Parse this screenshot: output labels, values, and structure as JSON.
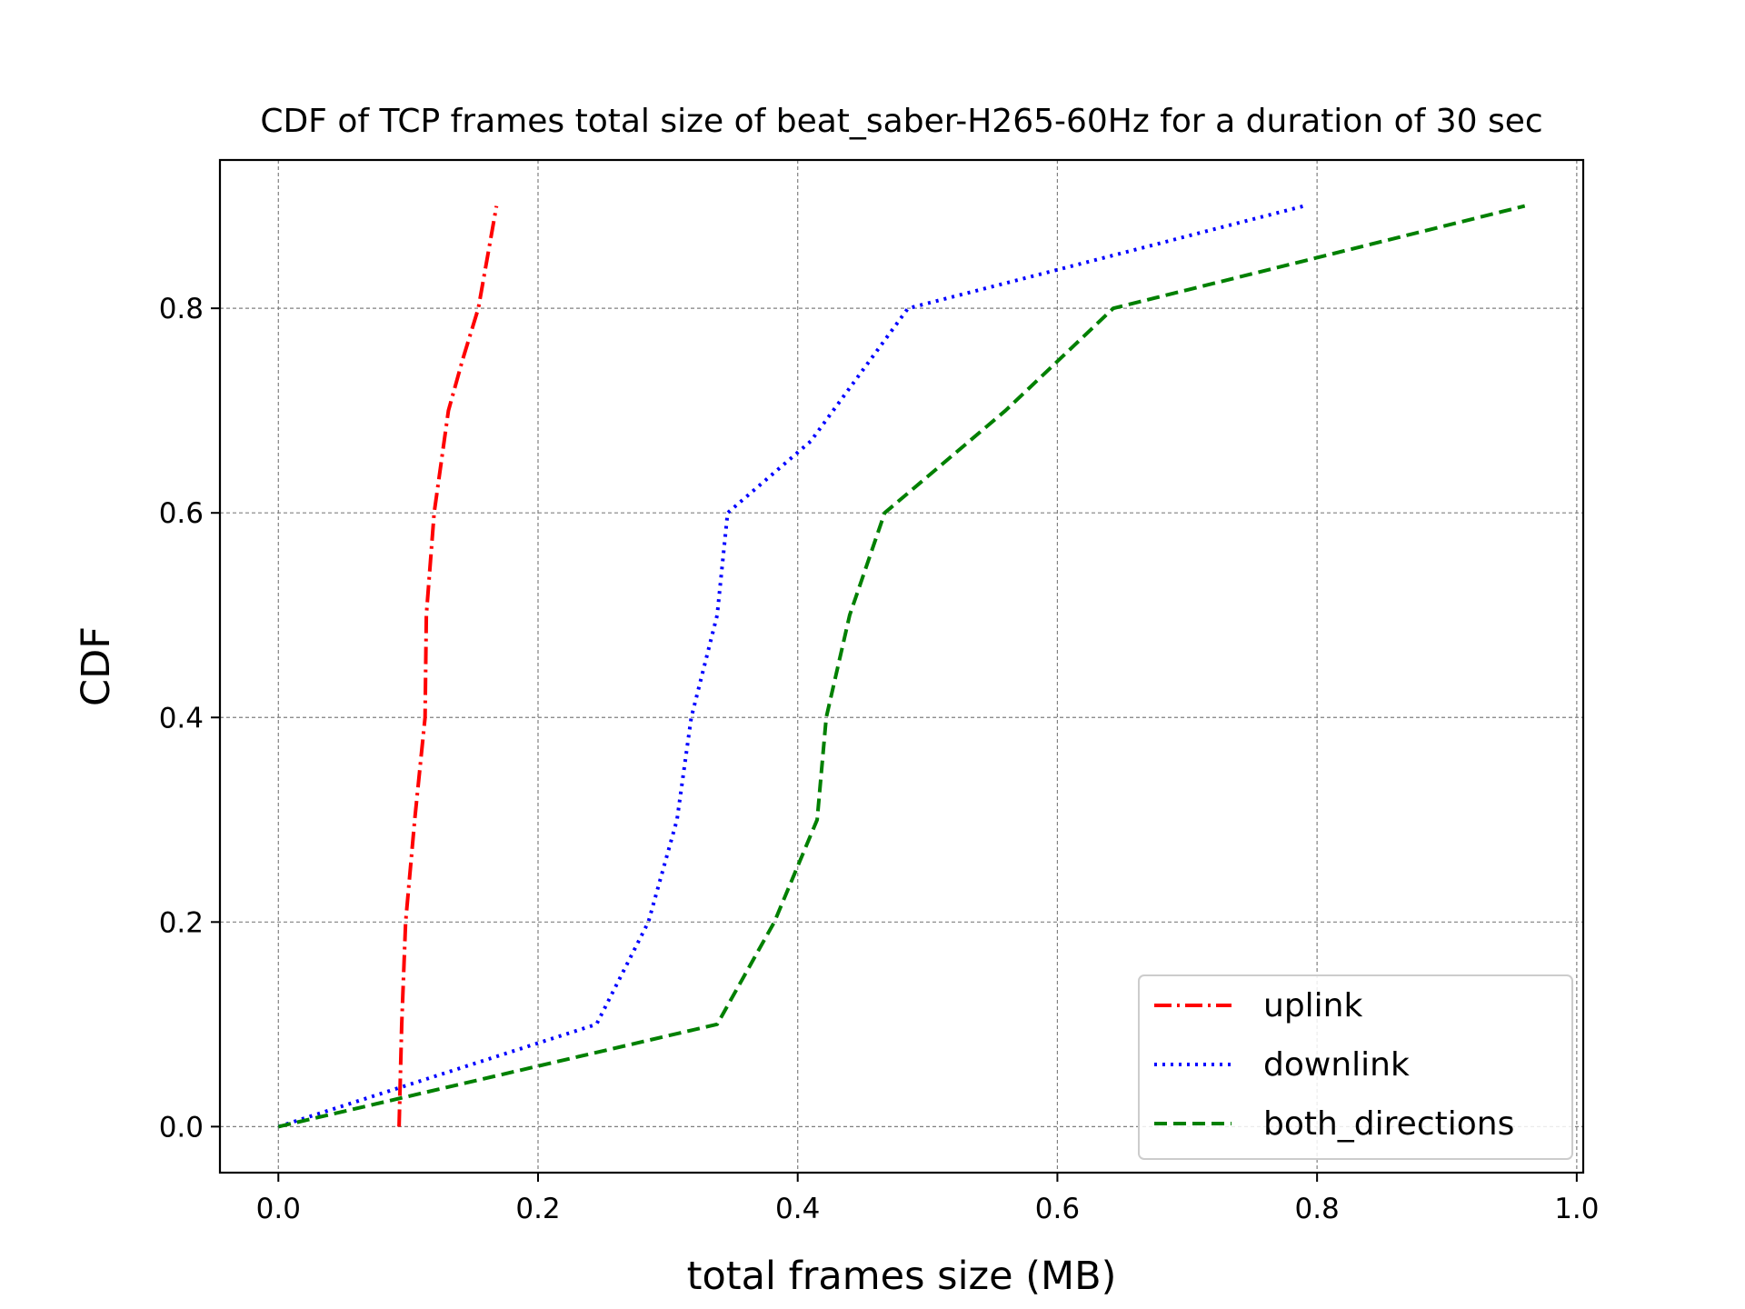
{
  "chart_data": {
    "type": "line",
    "title": "CDF of TCP frames total size of beat_saber-H265-60Hz for a duration of 30 sec",
    "xlabel": "total frames size (MB)",
    "ylabel": "CDF",
    "xlim": [
      -0.045,
      1.005
    ],
    "ylim": [
      -0.045,
      0.945
    ],
    "xticks": [
      0.0,
      0.2,
      0.4,
      0.6,
      0.8,
      1.0
    ],
    "xtick_labels": [
      "0.0",
      "0.2",
      "0.4",
      "0.6",
      "0.8",
      "1.0"
    ],
    "yticks": [
      0.0,
      0.2,
      0.4,
      0.6,
      0.8
    ],
    "ytick_labels": [
      "0.0",
      "0.2",
      "0.4",
      "0.6",
      "0.8"
    ],
    "grid": true,
    "legend_position": "lower-right",
    "series": [
      {
        "name": "uplink",
        "color": "#ff0000",
        "style": "dash-dot",
        "x": [
          0.093,
          0.095,
          0.098,
          0.105,
          0.113,
          0.114,
          0.12,
          0.131,
          0.142,
          0.154,
          0.168
        ],
        "y": [
          0.0,
          0.1,
          0.2,
          0.3,
          0.4,
          0.5,
          0.6,
          0.7,
          0.75,
          0.8,
          0.9
        ]
      },
      {
        "name": "downlink",
        "color": "#0000ff",
        "style": "dotted",
        "x": [
          0.0,
          0.245,
          0.285,
          0.307,
          0.318,
          0.338,
          0.346,
          0.41,
          0.485,
          0.79
        ],
        "y": [
          0.0,
          0.1,
          0.2,
          0.3,
          0.4,
          0.5,
          0.6,
          0.67,
          0.8,
          0.9
        ]
      },
      {
        "name": "both_directions",
        "color": "#008000",
        "style": "dashed",
        "x": [
          0.0,
          0.338,
          0.382,
          0.415,
          0.422,
          0.44,
          0.467,
          0.56,
          0.643,
          0.96
        ],
        "y": [
          0.0,
          0.1,
          0.2,
          0.3,
          0.4,
          0.5,
          0.6,
          0.7,
          0.8,
          0.9
        ]
      }
    ]
  }
}
